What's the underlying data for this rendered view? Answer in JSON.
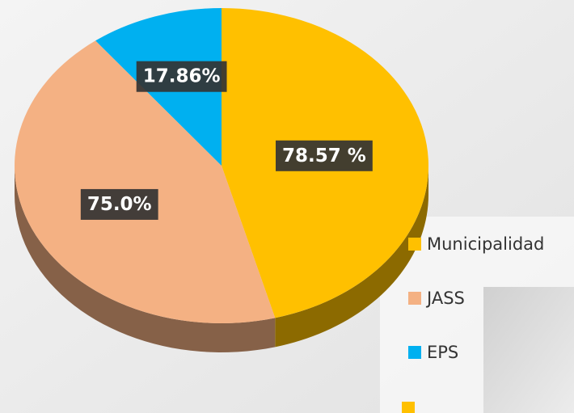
{
  "chart_data": {
    "type": "pie",
    "categories": [
      "Municipalidad",
      "JASS",
      "EPS"
    ],
    "values": [
      78.57,
      75.0,
      17.86
    ],
    "value_labels": [
      "78.57 %",
      "75.0%",
      "17.86%"
    ],
    "colors": [
      "#ffc000",
      "#f4b183",
      "#00b0f0"
    ]
  }
}
